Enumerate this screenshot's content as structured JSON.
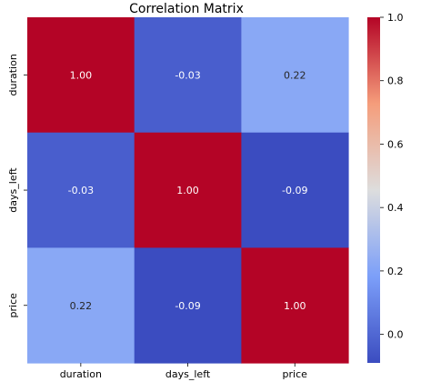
{
  "chart_data": {
    "type": "heatmap",
    "title": "Correlation Matrix",
    "variables": [
      "duration",
      "days_left",
      "price"
    ],
    "matrix": [
      [
        1.0,
        -0.03,
        0.22
      ],
      [
        -0.03,
        1.0,
        -0.09
      ],
      [
        0.22,
        -0.09,
        1.0
      ]
    ],
    "annotations": [
      [
        "1.00",
        "-0.03",
        "0.22"
      ],
      [
        "-0.03",
        "1.00",
        "-0.09"
      ],
      [
        "0.22",
        "-0.09",
        "1.00"
      ]
    ],
    "colormap": "coolwarm",
    "color_range": [
      -0.09,
      1.0
    ],
    "colorbar_ticks": [
      0.0,
      0.2,
      0.4,
      0.6,
      0.8,
      1.0
    ],
    "colorbar_tick_labels": [
      "0.0",
      "0.2",
      "0.4",
      "0.6",
      "0.8",
      "1.0"
    ]
  }
}
